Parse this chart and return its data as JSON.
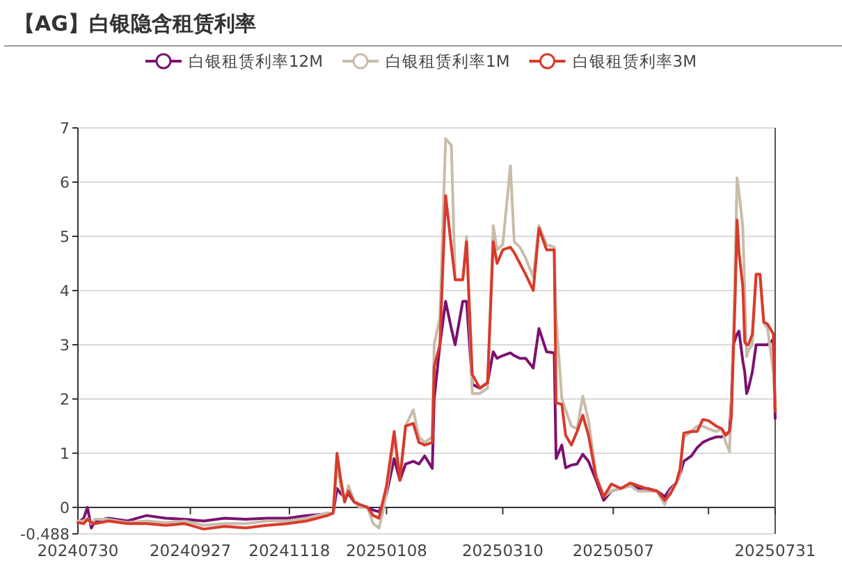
{
  "chart_data": {
    "type": "line",
    "title": "【AG】白银隐含租赁利率",
    "x": [
      "2024-07-30",
      "2024-08-02",
      "2024-08-04",
      "2024-08-06",
      "2024-08-08",
      "2024-08-15",
      "2024-08-25",
      "2024-09-04",
      "2024-09-14",
      "2024-09-24",
      "2024-10-04",
      "2024-10-15",
      "2024-10-26",
      "2024-11-06",
      "2024-11-17",
      "2024-11-27",
      "2024-12-08",
      "2024-12-11",
      "2024-12-13",
      "2024-12-15",
      "2024-12-17",
      "2024-12-19",
      "2024-12-22",
      "2024-12-25",
      "2024-12-29",
      "2025-01-01",
      "2025-01-04",
      "2025-01-06",
      "2025-01-08",
      "2025-01-12",
      "2025-01-15",
      "2025-01-18",
      "2025-01-22",
      "2025-01-25",
      "2025-01-28",
      "2025-02-01",
      "2025-02-02",
      "2025-02-05",
      "2025-02-08",
      "2025-02-11",
      "2025-02-13",
      "2025-02-17",
      "2025-02-19",
      "2025-02-22",
      "2025-02-26",
      "2025-03-02",
      "2025-03-05",
      "2025-03-07",
      "2025-03-10",
      "2025-03-14",
      "2025-03-16",
      "2025-03-19",
      "2025-03-22",
      "2025-03-26",
      "2025-03-29",
      "2025-04-02",
      "2025-04-06",
      "2025-04-07",
      "2025-04-10",
      "2025-04-12",
      "2025-04-15",
      "2025-04-18",
      "2025-04-21",
      "2025-04-24",
      "2025-04-28",
      "2025-05-02",
      "2025-05-06",
      "2025-05-11",
      "2025-05-16",
      "2025-05-20",
      "2025-05-25",
      "2025-05-30",
      "2025-06-03",
      "2025-06-06",
      "2025-06-09",
      "2025-06-11",
      "2025-06-13",
      "2025-06-17",
      "2025-06-20",
      "2025-06-23",
      "2025-06-26",
      "2025-06-30",
      "2025-07-03",
      "2025-07-05",
      "2025-07-07",
      "2025-07-08",
      "2025-07-09",
      "2025-07-10",
      "2025-07-11",
      "2025-07-12",
      "2025-07-14",
      "2025-07-15",
      "2025-07-16",
      "2025-07-17",
      "2025-07-19",
      "2025-07-21",
      "2025-07-23",
      "2025-07-25",
      "2025-07-27",
      "2025-07-30",
      "2025-07-31"
    ],
    "series": [
      {
        "name": "白银租赁利率12M",
        "color": "#7b1270",
        "values": [
          -0.28,
          -0.2,
          0.0,
          -0.38,
          -0.25,
          -0.2,
          -0.25,
          -0.15,
          -0.2,
          -0.22,
          -0.25,
          -0.2,
          -0.22,
          -0.2,
          -0.2,
          -0.15,
          -0.12,
          -0.1,
          0.35,
          0.25,
          0.2,
          0.25,
          0.1,
          0.05,
          0.0,
          -0.05,
          -0.08,
          0.05,
          0.25,
          0.9,
          0.5,
          0.8,
          0.85,
          0.8,
          0.95,
          0.72,
          2.0,
          3.0,
          3.8,
          3.3,
          3.0,
          3.8,
          3.8,
          2.27,
          2.2,
          2.3,
          2.87,
          2.75,
          2.8,
          2.85,
          2.8,
          2.75,
          2.75,
          2.57,
          3.3,
          2.87,
          2.85,
          0.9,
          1.15,
          0.73,
          0.78,
          0.8,
          0.98,
          0.85,
          0.5,
          0.13,
          0.3,
          0.35,
          0.4,
          0.35,
          0.35,
          0.3,
          0.2,
          0.35,
          0.45,
          0.6,
          0.85,
          0.95,
          1.1,
          1.2,
          1.25,
          1.3,
          1.3,
          1.35,
          1.4,
          2.0,
          3.0,
          3.1,
          3.2,
          3.25,
          2.7,
          2.5,
          2.1,
          2.2,
          2.5,
          3.0,
          3.0,
          3.0,
          3.0,
          3.1,
          1.64
        ]
      },
      {
        "name": "白银租赁利率1M",
        "color": "#c8bcaa",
        "values": [
          -0.25,
          -0.25,
          -0.2,
          -0.3,
          -0.22,
          -0.22,
          -0.28,
          -0.25,
          -0.28,
          -0.25,
          -0.33,
          -0.3,
          -0.3,
          -0.25,
          -0.25,
          -0.2,
          -0.1,
          -0.12,
          0.8,
          0.4,
          0.1,
          0.4,
          0.1,
          0.0,
          0.0,
          -0.3,
          -0.38,
          -0.1,
          0.3,
          1.3,
          0.6,
          1.5,
          1.8,
          1.3,
          1.2,
          1.3,
          3.0,
          3.5,
          6.8,
          6.68,
          4.2,
          4.2,
          5.0,
          2.1,
          2.1,
          2.2,
          5.2,
          4.75,
          4.85,
          6.3,
          4.9,
          4.8,
          4.6,
          4.25,
          5.2,
          4.85,
          4.8,
          3.5,
          2.0,
          1.8,
          1.5,
          1.45,
          2.05,
          1.6,
          0.6,
          0.2,
          0.3,
          0.35,
          0.4,
          0.3,
          0.3,
          0.3,
          0.05,
          0.3,
          0.45,
          0.6,
          1.3,
          1.4,
          1.5,
          1.5,
          1.45,
          1.4,
          1.45,
          1.2,
          1.03,
          2.0,
          3.0,
          4.5,
          6.08,
          5.8,
          5.18,
          4.0,
          2.78,
          2.9,
          3.0,
          4.3,
          4.3,
          3.4,
          3.3,
          2.5,
          1.8
        ]
      },
      {
        "name": "白银租赁利率3M",
        "color": "#d93a2a",
        "values": [
          -0.28,
          -0.3,
          -0.22,
          -0.28,
          -0.3,
          -0.25,
          -0.3,
          -0.3,
          -0.33,
          -0.3,
          -0.4,
          -0.35,
          -0.38,
          -0.33,
          -0.3,
          -0.25,
          -0.15,
          -0.1,
          1.0,
          0.5,
          0.1,
          0.3,
          0.1,
          0.05,
          0.0,
          -0.15,
          -0.2,
          0.1,
          0.4,
          1.4,
          0.5,
          1.5,
          1.55,
          1.2,
          1.15,
          1.2,
          2.6,
          3.0,
          5.75,
          4.8,
          4.2,
          4.2,
          4.9,
          2.45,
          2.2,
          2.3,
          4.9,
          4.5,
          4.75,
          4.8,
          4.7,
          4.5,
          4.3,
          4.0,
          5.15,
          4.75,
          4.75,
          1.93,
          1.9,
          1.33,
          1.15,
          1.4,
          1.7,
          1.33,
          0.55,
          0.2,
          0.43,
          0.35,
          0.45,
          0.4,
          0.34,
          0.3,
          0.13,
          0.25,
          0.45,
          0.7,
          1.37,
          1.4,
          1.4,
          1.62,
          1.6,
          1.5,
          1.45,
          1.33,
          1.4,
          1.67,
          2.8,
          3.9,
          5.3,
          4.7,
          4.07,
          3.05,
          3.0,
          3.0,
          3.2,
          4.3,
          4.3,
          3.42,
          3.38,
          3.2,
          1.77
        ]
      }
    ],
    "xlim": [
      "2024-07-30",
      "2025-07-31"
    ],
    "xticks": [
      {
        "value": "2024-07-30",
        "label": "20240730"
      },
      {
        "value": "2024-09-27",
        "label": "20240927"
      },
      {
        "value": "2024-11-18",
        "label": "20241118"
      },
      {
        "value": "2025-01-08",
        "label": "20250108"
      },
      {
        "value": "2025-03-10",
        "label": "20250310"
      },
      {
        "value": "2025-05-07",
        "label": "20250507"
      },
      {
        "value": "2025-06-26",
        "label": null
      },
      {
        "value": "2025-07-31",
        "label": "20250731"
      }
    ],
    "ylim": [
      -0.488,
      7
    ],
    "yticks": [
      -0.488,
      0,
      1,
      2,
      3,
      4,
      5,
      6,
      7
    ],
    "grid": "y",
    "legend": "top",
    "line_style": "solid"
  }
}
